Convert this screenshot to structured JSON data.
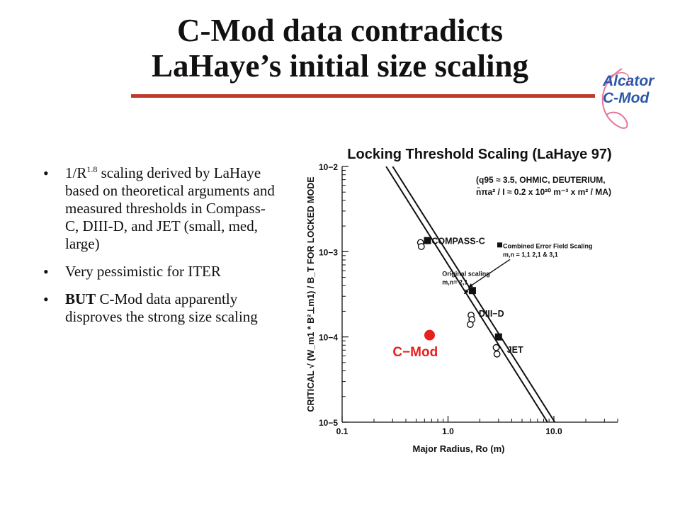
{
  "slide": {
    "title_line1": "C-Mod data contradicts",
    "title_line2": "LaHaye’s initial size scaling",
    "logo_line1": "Alcator",
    "logo_line2": "C-Mod",
    "accent_color": "#c0392b",
    "logo_color": "#2a57a8"
  },
  "bullets": [
    {
      "parts": [
        {
          "text": "1/R",
          "style": "normal"
        },
        {
          "text": "1.8",
          "style": "sup"
        },
        {
          "text": " scaling derived by LaHaye based on theoretical arguments and measured thresholds in Compass-C, DIII-D, and JET (small, med, large)",
          "style": "normal"
        }
      ]
    },
    {
      "parts": [
        {
          "text": "Very pessimistic for ITER",
          "style": "normal"
        }
      ]
    },
    {
      "parts": [
        {
          "text": "BUT",
          "style": "bold"
        },
        {
          "text": "  C-Mod data apparently disproves the strong size scaling",
          "style": "normal"
        }
      ]
    }
  ],
  "chart_data": {
    "type": "scatter",
    "title": "Locking Threshold Scaling (LaHaye 97)",
    "xlabel": "Major Radius, Ro (m)",
    "ylabel": "CRITICAL √ (W_m1 * B²⊥m1) / B_T FOR LOCKED MODE",
    "x_scale": "log",
    "y_scale": "log",
    "xlim": [
      0.1,
      40
    ],
    "ylim": [
      1e-05,
      0.01
    ],
    "x_ticks": [
      "0.1",
      "1.0",
      "10.0"
    ],
    "y_ticks": [
      "10−2",
      "10−3",
      "10−4",
      "10−5"
    ],
    "grid": false,
    "annotation_conditions": [
      "(q95 ≈ 3.5, OHMIC, DEUTERIUM,",
      "n̄πa² / I ≈ 0.2 x 10²⁰ m⁻³ x m² / MA)"
    ],
    "series": [
      {
        "name": "Combined Error Field Scaling m,n = 1,1 2,1 & 3,1",
        "marker": "filled-square",
        "points": [
          {
            "x": 0.64,
            "y": 0.00135
          },
          {
            "x": 1.7,
            "y": 0.00035
          },
          {
            "x": 3.0,
            "y": 0.0001
          }
        ]
      },
      {
        "name": "Original scaling m,n= 2,1",
        "marker": "open-circle",
        "points": [
          {
            "x": 0.55,
            "y": 0.00128
          },
          {
            "x": 0.56,
            "y": 0.00115
          },
          {
            "x": 1.65,
            "y": 0.00018
          },
          {
            "x": 1.68,
            "y": 0.00016
          },
          {
            "x": 1.62,
            "y": 0.00014
          },
          {
            "x": 2.85,
            "y": 7.5e-05
          },
          {
            "x": 2.9,
            "y": 6.3e-05
          }
        ]
      },
      {
        "name": "C−Mod",
        "marker": "filled-circle",
        "color": "#e8201c",
        "points": [
          {
            "x": 0.67,
            "y": 0.000105
          }
        ]
      }
    ],
    "fit_lines": [
      {
        "label": "Combined Error Field Scaling",
        "points": [
          [
            0.3,
            0.01
          ],
          [
            10.2,
            1e-05
          ]
        ]
      },
      {
        "label": "Original scaling",
        "points": [
          [
            0.26,
            0.01
          ],
          [
            8.7,
            1e-05
          ]
        ]
      }
    ],
    "point_labels": [
      {
        "text": "COMPASS-C",
        "x": 0.7,
        "y": 0.00135
      },
      {
        "text": "DIII−D",
        "x": 1.95,
        "y": 0.00019
      },
      {
        "text": "JET",
        "x": 3.6,
        "y": 7.2e-05
      },
      {
        "text": "C−Mod",
        "x": 0.3,
        "y": 6.5e-05
      }
    ],
    "legend_notes": [
      {
        "lines": [
          "Combined Error Field Scaling",
          "m,n = 1,1 2,1 & 3,1"
        ],
        "x": 3.3,
        "y": 0.0011,
        "arrow_to": {
          "x": 1.55,
          "y": 0.00038
        }
      },
      {
        "lines": [
          "Original scaling",
          "m,n= 2,1"
        ],
        "x": 0.88,
        "y": 0.00052,
        "arrow_to": {
          "x": 1.42,
          "y": 0.00032
        }
      }
    ]
  }
}
